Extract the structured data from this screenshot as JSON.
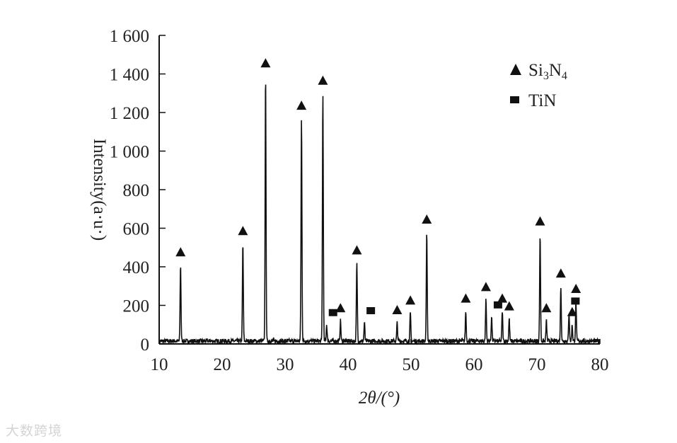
{
  "chart_data": {
    "type": "line",
    "xlabel": "2θ/(°)",
    "ylabel": "Intensity(a·u·)",
    "xlim": [
      10,
      80
    ],
    "ylim": [
      0,
      1600
    ],
    "xticks": [
      10,
      20,
      30,
      40,
      50,
      60,
      70,
      80
    ],
    "xtick_labels": [
      "10",
      "20",
      "30",
      "40",
      "50",
      "60",
      "70",
      "80"
    ],
    "yticks": [
      0,
      200,
      400,
      600,
      800,
      1000,
      1200,
      1400,
      1600
    ],
    "ytick_labels": [
      "0",
      "200",
      "400",
      "600",
      "800",
      "1 000",
      "1 200",
      "1 400",
      "1 600"
    ],
    "grid": false,
    "legend_position": "top-right",
    "legend": [
      {
        "marker": "triangle",
        "label_main": "Si",
        "sub1": "3",
        "label_mid": "N",
        "sub2": "4"
      },
      {
        "marker": "square",
        "label_main": "TiN",
        "sub1": "",
        "label_mid": "",
        "sub2": ""
      }
    ],
    "baseline": 15,
    "peaks": [
      {
        "x": 13.4,
        "y": 410,
        "phase": "triangle"
      },
      {
        "x": 23.3,
        "y": 520,
        "phase": "triangle"
      },
      {
        "x": 26.9,
        "y": 1390,
        "phase": "triangle"
      },
      {
        "x": 32.6,
        "y": 1170,
        "phase": "triangle"
      },
      {
        "x": 36.0,
        "y": 1300,
        "phase": "triangle"
      },
      {
        "x": 36.6,
        "y": 100,
        "phase": "square"
      },
      {
        "x": 38.8,
        "y": 120,
        "phase": "triangle"
      },
      {
        "x": 41.4,
        "y": 420,
        "phase": "triangle"
      },
      {
        "x": 42.6,
        "y": 110,
        "phase": "square"
      },
      {
        "x": 47.8,
        "y": 110,
        "phase": "triangle"
      },
      {
        "x": 49.9,
        "y": 160,
        "phase": "triangle"
      },
      {
        "x": 52.5,
        "y": 580,
        "phase": "triangle"
      },
      {
        "x": 58.7,
        "y": 170,
        "phase": "triangle"
      },
      {
        "x": 61.9,
        "y": 230,
        "phase": "triangle"
      },
      {
        "x": 62.8,
        "y": 140,
        "phase": "square"
      },
      {
        "x": 64.5,
        "y": 170,
        "phase": "triangle"
      },
      {
        "x": 65.6,
        "y": 130,
        "phase": "triangle"
      },
      {
        "x": 70.5,
        "y": 570,
        "phase": "triangle"
      },
      {
        "x": 71.5,
        "y": 120,
        "phase": "triangle"
      },
      {
        "x": 73.8,
        "y": 300,
        "phase": "triangle"
      },
      {
        "x": 75.1,
        "y": 160,
        "phase": "square"
      },
      {
        "x": 75.6,
        "y": 100,
        "phase": "triangle"
      },
      {
        "x": 76.2,
        "y": 220,
        "phase": "triangle"
      }
    ]
  },
  "watermark": "大数跨境"
}
